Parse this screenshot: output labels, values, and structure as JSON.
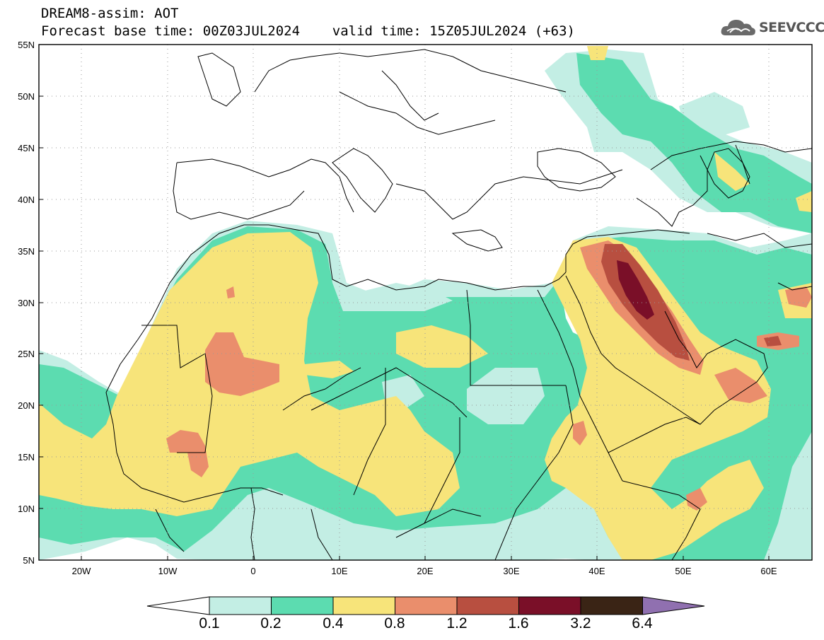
{
  "header": {
    "title_line1": "DREAM8-assim: AOT",
    "title_line2": "Forecast base time: 00Z03JUL2024    valid time: 15Z05JUL2024 (+63)",
    "logo_text": "SEEVCCC"
  },
  "map": {
    "lat_labels": [
      "55N",
      "50N",
      "45N",
      "40N",
      "35N",
      "30N",
      "25N",
      "20N",
      "15N",
      "10N",
      "5N"
    ],
    "lon_labels": [
      "20W",
      "10W",
      "0",
      "10E",
      "20E",
      "30E",
      "40E",
      "50E",
      "60E"
    ],
    "lat_range": [
      5,
      55
    ],
    "lon_range": [
      -25,
      65
    ],
    "field": "AOT",
    "gridlines": true
  },
  "colorbar": {
    "labels": [
      "0.1",
      "0.2",
      "0.4",
      "0.8",
      "1.2",
      "1.6",
      "3.2",
      "6.4"
    ],
    "colors": [
      "#c3eee4",
      "#5cdcb0",
      "#f7e47a",
      "#ea8e6c",
      "#b84f40",
      "#7a0f28",
      "#3a2415",
      "#9070b0"
    ]
  },
  "colors": {
    "aot_0_1": "#c3eee4",
    "aot_0_2": "#5cdcb0",
    "aot_0_4": "#f7e47a",
    "aot_0_8": "#ea8e6c",
    "aot_1_2": "#b84f40",
    "aot_1_6": "#7a0f28"
  }
}
